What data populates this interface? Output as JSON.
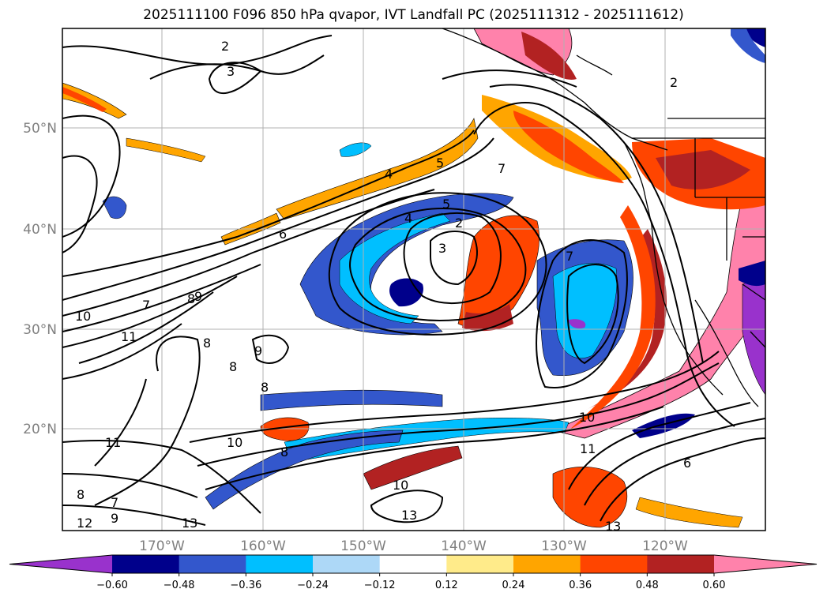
{
  "title": "2025111100 F096 850 hPa qvapor, IVT Landfall PC (2025111312 - 2025111612)",
  "map": {
    "lat_labels": [
      "50°N",
      "40°N",
      "30°N",
      "20°N"
    ],
    "lon_labels": [
      "170°W",
      "160°W",
      "150°W",
      "140°W",
      "130°W",
      "120°W"
    ],
    "gridlines": true,
    "colors": {
      "coast": "#000000",
      "grid": "#b0b0b0",
      "contour": "#000000"
    },
    "contour_labels": [
      "2",
      "3",
      "2",
      "4",
      "5",
      "7",
      "7",
      "4",
      "5",
      "6",
      "2",
      "3",
      "7",
      "8",
      "9",
      "10",
      "11",
      "8",
      "9",
      "8",
      "11",
      "10",
      "8",
      "12",
      "9",
      "7",
      "8",
      "13",
      "10",
      "13",
      "11",
      "13",
      "10",
      "6",
      "8"
    ]
  },
  "colorbar": {
    "colors": [
      "#9932cc",
      "#00008b",
      "#3357cc",
      "#00bfff",
      "#add8f7",
      "#ffffff",
      "#ffeb8a",
      "#ffa500",
      "#ff4500",
      "#b22222",
      "#ff82ab"
    ],
    "tick_labels": [
      "−0.60",
      "−0.48",
      "−0.36",
      "−0.24",
      "−0.12",
      "0.12",
      "0.24",
      "0.36",
      "0.48",
      "0.60"
    ],
    "extend": "both"
  }
}
